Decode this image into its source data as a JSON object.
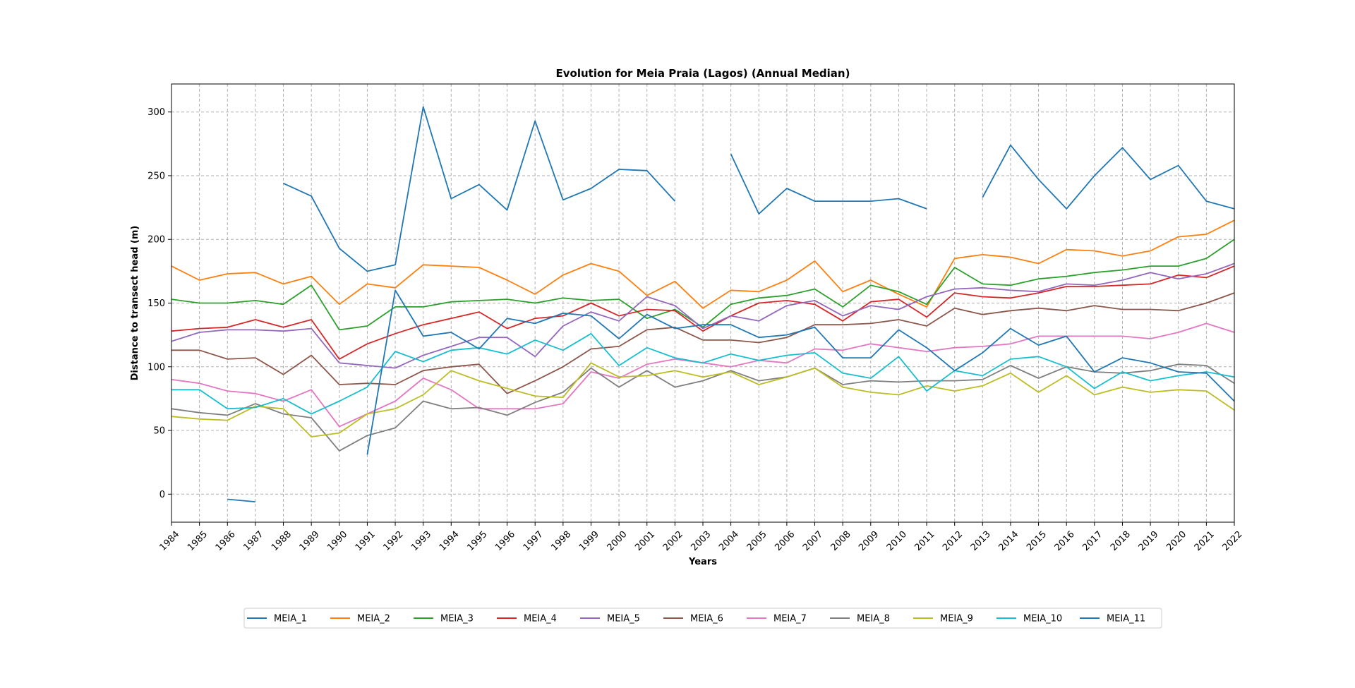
{
  "chart_data": {
    "type": "line",
    "title": "Evolution for Meia Praia (Lagos) (Annual Median)",
    "xlabel": "Years",
    "ylabel": "Distance to transect head (m)",
    "ylim": [
      -22,
      322
    ],
    "yticks": [
      0,
      50,
      100,
      150,
      200,
      250,
      300
    ],
    "grid": true,
    "legend_position": "bottom-center",
    "x": [
      1984,
      1985,
      1986,
      1987,
      1988,
      1989,
      1990,
      1991,
      1992,
      1993,
      1994,
      1995,
      1996,
      1997,
      1998,
      1999,
      2000,
      2001,
      2002,
      2003,
      2004,
      2005,
      2006,
      2007,
      2008,
      2009,
      2010,
      2011,
      2012,
      2013,
      2014,
      2015,
      2016,
      2017,
      2018,
      2019,
      2020,
      2021,
      2022
    ],
    "series": [
      {
        "name": "MEIA_1",
        "color": "#1f77b4",
        "values": [
          null,
          null,
          null,
          null,
          244,
          234,
          193,
          175,
          180,
          304,
          232,
          243,
          223,
          293,
          231,
          240,
          255,
          254,
          230,
          null,
          267,
          220,
          240,
          230,
          230,
          230,
          232,
          224,
          null,
          233,
          274,
          247,
          224,
          250,
          272,
          247,
          258,
          230,
          224
        ]
      },
      {
        "name": "MEIA_2",
        "color": "#ff7f0e",
        "values": [
          179,
          168,
          173,
          174,
          165,
          171,
          149,
          165,
          162,
          180,
          179,
          178,
          168,
          157,
          172,
          181,
          175,
          156,
          167,
          146,
          160,
          159,
          168,
          183,
          159,
          168,
          157,
          147,
          185,
          188,
          186,
          181,
          192,
          191,
          187,
          191,
          202,
          204,
          215
        ]
      },
      {
        "name": "MEIA_3",
        "color": "#2ca02c",
        "values": [
          153,
          150,
          150,
          152,
          149,
          164,
          129,
          132,
          147,
          147,
          151,
          152,
          153,
          150,
          154,
          152,
          153,
          138,
          145,
          131,
          149,
          154,
          156,
          161,
          147,
          164,
          159,
          149,
          178,
          165,
          164,
          169,
          171,
          174,
          176,
          179,
          179,
          185,
          200
        ]
      },
      {
        "name": "MEIA_4",
        "color": "#d62728",
        "values": [
          128,
          130,
          131,
          137,
          131,
          137,
          106,
          118,
          126,
          133,
          138,
          143,
          130,
          138,
          140,
          150,
          140,
          145,
          144,
          128,
          140,
          150,
          152,
          149,
          136,
          151,
          153,
          139,
          158,
          155,
          154,
          158,
          163,
          163,
          164,
          165,
          172,
          170,
          179
        ]
      },
      {
        "name": "MEIA_5",
        "color": "#9467bd",
        "values": [
          120,
          127,
          129,
          129,
          128,
          130,
          103,
          101,
          99,
          109,
          116,
          123,
          123,
          108,
          132,
          143,
          136,
          155,
          148,
          130,
          140,
          136,
          148,
          152,
          140,
          148,
          145,
          155,
          161,
          162,
          160,
          159,
          165,
          164,
          168,
          174,
          169,
          173,
          181
        ]
      },
      {
        "name": "MEIA_6",
        "color": "#8c564b",
        "values": [
          113,
          113,
          106,
          107,
          94,
          109,
          86,
          87,
          86,
          97,
          100,
          102,
          79,
          89,
          100,
          114,
          116,
          129,
          131,
          121,
          121,
          119,
          123,
          133,
          133,
          134,
          137,
          132,
          146,
          141,
          144,
          146,
          144,
          148,
          145,
          145,
          144,
          150,
          158
        ]
      },
      {
        "name": "MEIA_7",
        "color": "#e377c2",
        "values": [
          90,
          87,
          81,
          79,
          73,
          82,
          53,
          63,
          73,
          91,
          82,
          67,
          67,
          67,
          71,
          96,
          91,
          102,
          106,
          103,
          100,
          105,
          103,
          114,
          113,
          118,
          115,
          112,
          115,
          116,
          118,
          124,
          124,
          124,
          124,
          122,
          127,
          134,
          127
        ]
      },
      {
        "name": "MEIA_8",
        "color": "#7f7f7f",
        "values": [
          67,
          64,
          62,
          71,
          63,
          60,
          34,
          46,
          52,
          73,
          67,
          68,
          62,
          72,
          80,
          99,
          84,
          97,
          84,
          89,
          97,
          89,
          92,
          99,
          86,
          89,
          88,
          89,
          89,
          90,
          101,
          91,
          100,
          96,
          95,
          97,
          102,
          101,
          87
        ]
      },
      {
        "name": "MEIA_9",
        "color": "#bcbd22",
        "values": [
          61,
          59,
          58,
          69,
          67,
          45,
          48,
          63,
          67,
          78,
          97,
          89,
          83,
          77,
          76,
          103,
          92,
          93,
          97,
          92,
          96,
          86,
          92,
          99,
          84,
          80,
          78,
          85,
          81,
          85,
          95,
          80,
          93,
          78,
          84,
          80,
          82,
          81,
          66
        ]
      },
      {
        "name": "MEIA_10",
        "color": "#17becf",
        "values": [
          82,
          82,
          67,
          68,
          75,
          63,
          73,
          84,
          112,
          104,
          113,
          115,
          110,
          121,
          113,
          126,
          101,
          115,
          107,
          103,
          110,
          105,
          109,
          111,
          95,
          91,
          108,
          81,
          97,
          93,
          106,
          108,
          100,
          83,
          96,
          89,
          93,
          96,
          92
        ]
      },
      {
        "name": "MEIA_11",
        "color": "#1f77b4",
        "values": [
          null,
          null,
          -4,
          -6,
          null,
          null,
          null,
          31,
          160,
          124,
          127,
          114,
          138,
          134,
          142,
          140,
          122,
          141,
          130,
          133,
          133,
          123,
          125,
          131,
          107,
          107,
          129,
          115,
          97,
          111,
          130,
          117,
          124,
          96,
          107,
          103,
          96,
          95,
          73
        ]
      }
    ]
  }
}
